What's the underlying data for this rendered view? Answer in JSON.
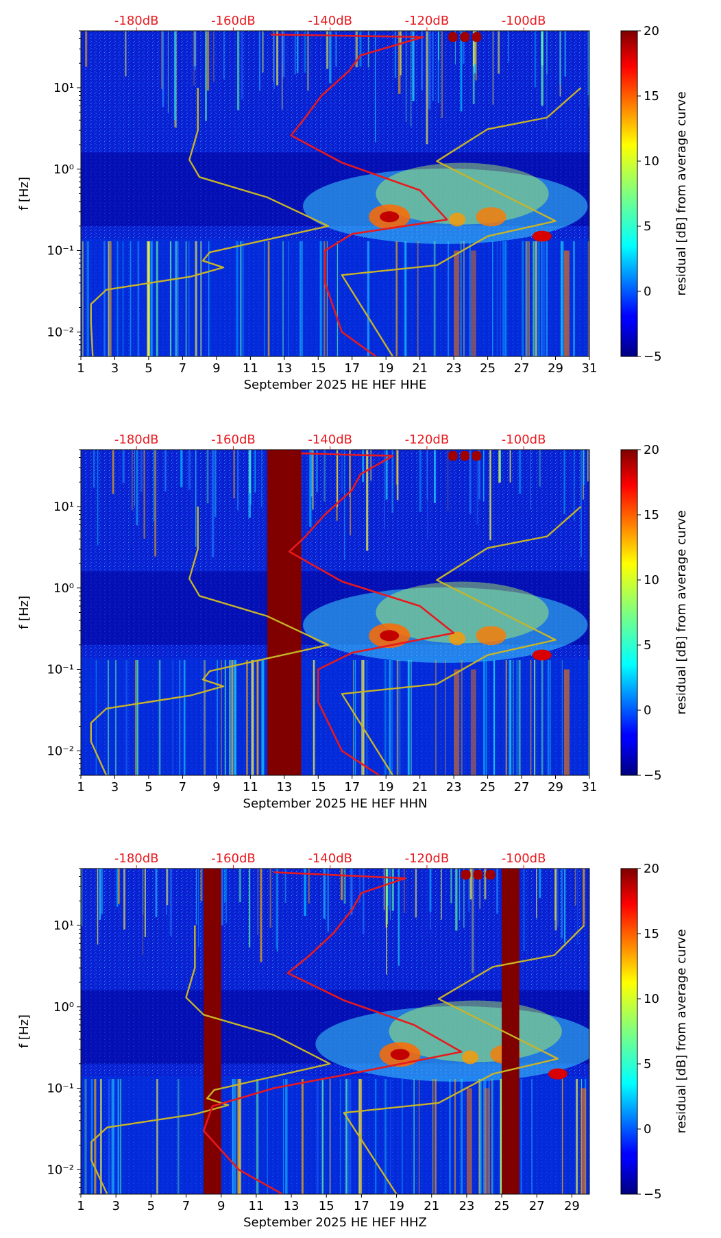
{
  "chart_data": [
    {
      "type": "heatmap",
      "title": "September 2025 HE HEF  HHE",
      "xlabel": "September 2025 HE HEF  HHE",
      "ylabel": "f [Hz]",
      "x_ticks": [
        "1",
        "3",
        "5",
        "7",
        "9",
        "11",
        "13",
        "15",
        "17",
        "19",
        "21",
        "23",
        "25",
        "27",
        "29",
        "31"
      ],
      "xlim": [
        1,
        31
      ],
      "y_ticks": [
        "10⁻²",
        "10⁻¹",
        "10⁰",
        "10¹"
      ],
      "ylim": [
        0.005,
        50
      ],
      "top_axis_ticks": [
        "-180dB",
        "-160dB",
        "-140dB",
        "-120dB",
        "-100dB"
      ],
      "top_axis_values": [
        -180,
        -160,
        -140,
        -120,
        -100
      ],
      "colorbar": {
        "label": "residual [dB] from average curve",
        "ticks": [
          "−5",
          "0",
          "5",
          "10",
          "15",
          "20"
        ],
        "range": [
          -5,
          20
        ]
      },
      "gaps": [],
      "curves": [
        {
          "name": "yellow",
          "color": "#c8b428",
          "points": [
            [
              1.7,
              0.005
            ],
            [
              1.6,
              0.013
            ],
            [
              1.6,
              0.022
            ],
            [
              2.5,
              0.033
            ],
            [
              7.5,
              0.048
            ],
            [
              9.4,
              0.062
            ],
            [
              8.2,
              0.075
            ],
            [
              8.6,
              0.095
            ],
            [
              15.6,
              0.2
            ],
            [
              12.0,
              0.45
            ],
            [
              8.0,
              0.8
            ],
            [
              7.4,
              1.3
            ],
            [
              7.9,
              3.0
            ],
            [
              7.9,
              10
            ]
          ]
        },
        {
          "name": "yellow2",
          "color": "#c8b428",
          "points": [
            [
              19.4,
              0.005
            ],
            [
              16.4,
              0.05
            ],
            [
              22.0,
              0.066
            ],
            [
              25.0,
              0.15
            ],
            [
              29.0,
              0.23
            ],
            [
              22.0,
              1.25
            ],
            [
              25.0,
              3.1
            ],
            [
              28.5,
              4.3
            ],
            [
              30.5,
              10
            ]
          ]
        },
        {
          "name": "red",
          "color": "#e8191e",
          "points": [
            [
              18.4,
              0.005
            ],
            [
              16.4,
              0.01
            ],
            [
              15.4,
              0.04
            ],
            [
              15.4,
              0.1
            ],
            [
              17.0,
              0.16
            ],
            [
              22.6,
              0.24
            ],
            [
              21.0,
              0.55
            ],
            [
              16.4,
              1.2
            ],
            [
              13.4,
              2.6
            ],
            [
              14.2,
              4.2
            ],
            [
              15.2,
              8.0
            ],
            [
              16.8,
              16
            ],
            [
              17.5,
              25
            ],
            [
              21.2,
              42
            ],
            [
              12.2,
              45
            ]
          ]
        }
      ]
    },
    {
      "type": "heatmap",
      "title": "September 2025 HE HEF  HHN",
      "xlabel": "September 2025 HE HEF  HHN",
      "ylabel": "f [Hz]",
      "x_ticks": [
        "1",
        "3",
        "5",
        "7",
        "9",
        "11",
        "13",
        "15",
        "17",
        "19",
        "21",
        "23",
        "25",
        "27",
        "29",
        "31"
      ],
      "xlim": [
        1,
        31
      ],
      "y_ticks": [
        "10⁻²",
        "10⁻¹",
        "10⁰",
        "10¹"
      ],
      "ylim": [
        0.005,
        50
      ],
      "top_axis_ticks": [
        "-180dB",
        "-160dB",
        "-140dB",
        "-120dB",
        "-100dB"
      ],
      "top_axis_values": [
        -180,
        -160,
        -140,
        -120,
        -100
      ],
      "colorbar": {
        "label": "residual [dB] from average curve",
        "ticks": [
          "−5",
          "0",
          "5",
          "10",
          "15",
          "20"
        ],
        "range": [
          -5,
          20
        ]
      },
      "gaps": [
        [
          12.0,
          14.0
        ]
      ],
      "curves": [
        {
          "name": "yellow",
          "color": "#c8b428",
          "points": [
            [
              2.5,
              0.005
            ],
            [
              1.6,
              0.013
            ],
            [
              1.6,
              0.022
            ],
            [
              2.5,
              0.033
            ],
            [
              7.5,
              0.048
            ],
            [
              9.4,
              0.062
            ],
            [
              8.2,
              0.075
            ],
            [
              8.6,
              0.095
            ],
            [
              15.6,
              0.2
            ],
            [
              12.0,
              0.45
            ],
            [
              8.0,
              0.8
            ],
            [
              7.4,
              1.3
            ],
            [
              7.9,
              3.0
            ],
            [
              7.9,
              10
            ]
          ]
        },
        {
          "name": "yellow2",
          "color": "#c8b428",
          "points": [
            [
              19.4,
              0.005
            ],
            [
              16.4,
              0.05
            ],
            [
              22.0,
              0.066
            ],
            [
              25.0,
              0.15
            ],
            [
              29.0,
              0.23
            ],
            [
              22.0,
              1.25
            ],
            [
              25.0,
              3.1
            ],
            [
              28.5,
              4.3
            ],
            [
              30.5,
              10
            ]
          ]
        },
        {
          "name": "red",
          "color": "#e8191e",
          "points": [
            [
              18.6,
              0.005
            ],
            [
              16.4,
              0.01
            ],
            [
              15.0,
              0.04
            ],
            [
              15.0,
              0.1
            ],
            [
              17.0,
              0.16
            ],
            [
              23.0,
              0.28
            ],
            [
              21.0,
              0.6
            ],
            [
              16.4,
              1.2
            ],
            [
              13.3,
              2.8
            ],
            [
              14.2,
              4.2
            ],
            [
              15.4,
              8.0
            ],
            [
              17.0,
              16
            ],
            [
              17.5,
              25
            ],
            [
              19.4,
              42
            ],
            [
              14.0,
              45
            ]
          ]
        }
      ]
    },
    {
      "type": "heatmap",
      "title": "September 2025 HE HEF  HHZ",
      "xlabel": "September 2025 HE HEF  HHZ",
      "ylabel": "f [Hz]",
      "x_ticks": [
        "1",
        "3",
        "5",
        "7",
        "9",
        "11",
        "13",
        "15",
        "17",
        "19",
        "21",
        "23",
        "25",
        "27",
        "29"
      ],
      "xlim": [
        1,
        30
      ],
      "y_ticks": [
        "10⁻²",
        "10⁻¹",
        "10⁰",
        "10¹"
      ],
      "ylim": [
        0.005,
        50
      ],
      "top_axis_ticks": [
        "-180dB",
        "-160dB",
        "-140dB",
        "-120dB",
        "-100dB"
      ],
      "top_axis_values": [
        -180,
        -160,
        -140,
        -120,
        -100
      ],
      "colorbar": {
        "label": "residual [dB] from average curve",
        "ticks": [
          "−5",
          "0",
          "5",
          "10",
          "15",
          "20"
        ],
        "range": [
          -5,
          20
        ]
      },
      "gaps": [
        [
          8.0,
          9.0
        ],
        [
          25.0,
          26.0
        ]
      ],
      "curves": [
        {
          "name": "yellow",
          "color": "#c8b428",
          "points": [
            [
              2.5,
              0.005
            ],
            [
              1.6,
              0.013
            ],
            [
              1.6,
              0.022
            ],
            [
              2.5,
              0.033
            ],
            [
              7.5,
              0.048
            ],
            [
              9.4,
              0.062
            ],
            [
              8.2,
              0.075
            ],
            [
              8.6,
              0.095
            ],
            [
              15.2,
              0.2
            ],
            [
              12.0,
              0.45
            ],
            [
              8.0,
              0.8
            ],
            [
              7.0,
              1.3
            ],
            [
              7.5,
              3.0
            ],
            [
              7.5,
              10
            ]
          ]
        },
        {
          "name": "yellow2",
          "color": "#c8b428",
          "points": [
            [
              19.0,
              0.005
            ],
            [
              16.0,
              0.05
            ],
            [
              21.4,
              0.066
            ],
            [
              24.5,
              0.15
            ],
            [
              28.2,
              0.23
            ],
            [
              21.4,
              1.25
            ],
            [
              24.5,
              3.1
            ],
            [
              28.0,
              4.3
            ],
            [
              29.7,
              10
            ]
          ]
        },
        {
          "name": "red",
          "color": "#e8191e",
          "points": [
            [
              12.5,
              0.005
            ],
            [
              10.0,
              0.01
            ],
            [
              8.0,
              0.03
            ],
            [
              8.5,
              0.06
            ],
            [
              12.0,
              0.1
            ],
            [
              17.0,
              0.16
            ],
            [
              22.7,
              0.28
            ],
            [
              20.0,
              0.6
            ],
            [
              16.0,
              1.2
            ],
            [
              12.8,
              2.6
            ],
            [
              14.0,
              4.2
            ],
            [
              15.4,
              8.0
            ],
            [
              16.5,
              16
            ],
            [
              17.0,
              25
            ],
            [
              19.5,
              38
            ],
            [
              12.0,
              45
            ]
          ]
        }
      ]
    }
  ]
}
